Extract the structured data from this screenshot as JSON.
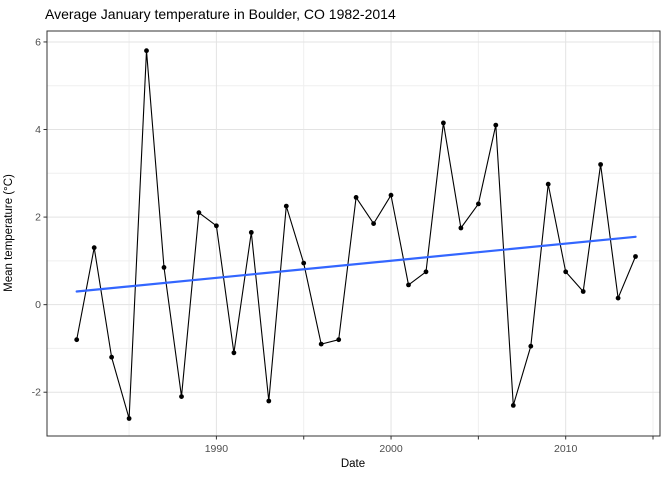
{
  "chart_data": {
    "type": "line",
    "title": "Average January temperature in Boulder, CO 1982-2014",
    "xlabel": "Date",
    "ylabel": "Mean temperature (°C)",
    "x": [
      1982,
      1983,
      1984,
      1985,
      1986,
      1987,
      1988,
      1989,
      1990,
      1991,
      1992,
      1993,
      1994,
      1995,
      1996,
      1997,
      1998,
      1999,
      2000,
      2001,
      2002,
      2003,
      2004,
      2005,
      2006,
      2007,
      2008,
      2009,
      2010,
      2011,
      2012,
      2013,
      2014
    ],
    "y": [
      -0.8,
      1.3,
      -1.2,
      -2.6,
      5.8,
      0.85,
      -2.1,
      2.1,
      1.8,
      -1.1,
      1.65,
      -2.2,
      2.25,
      0.95,
      -0.9,
      -0.8,
      2.45,
      1.85,
      2.5,
      0.45,
      0.75,
      4.15,
      1.75,
      2.3,
      4.1,
      -2.3,
      -0.95,
      2.75,
      0.75,
      0.3,
      3.2,
      0.15,
      1.1
    ],
    "trend_line": {
      "x_start": 1982,
      "y_start": 0.3,
      "x_end": 2014,
      "y_end": 1.55,
      "color": "#3366FF"
    },
    "line_color": "#000000",
    "point_color": "#000000",
    "xlim": [
      1980.3,
      2015.4
    ],
    "ylim": [
      -3.0,
      6.25
    ],
    "x_ticks": [
      1990,
      1995,
      2000,
      2005,
      2010,
      2015
    ],
    "x_tick_labels": [
      "1990",
      "",
      "2000",
      "",
      "2010",
      ""
    ],
    "y_ticks": [
      -2,
      0,
      2,
      4,
      6
    ],
    "y_tick_labels": [
      "-2",
      "0",
      "2",
      "4",
      "6"
    ],
    "x_grid_major": [
      1990,
      2000,
      2010
    ],
    "x_grid_minor": [
      1985,
      1995,
      2005,
      2015
    ],
    "y_grid_major": [
      -2,
      0,
      2,
      4,
      6
    ],
    "y_grid_minor": [
      -1,
      1,
      3,
      5
    ],
    "grid": "on",
    "legend": "none",
    "colors": {
      "grid_major": "#E3E3E3",
      "grid_minor": "#EFEFEF",
      "panel_border": "#333333",
      "tick": "#333333",
      "tick_label": "#4D4D4D",
      "title": "#000000",
      "axis_title": "#000000",
      "panel_bg": "#FFFFFF"
    }
  }
}
